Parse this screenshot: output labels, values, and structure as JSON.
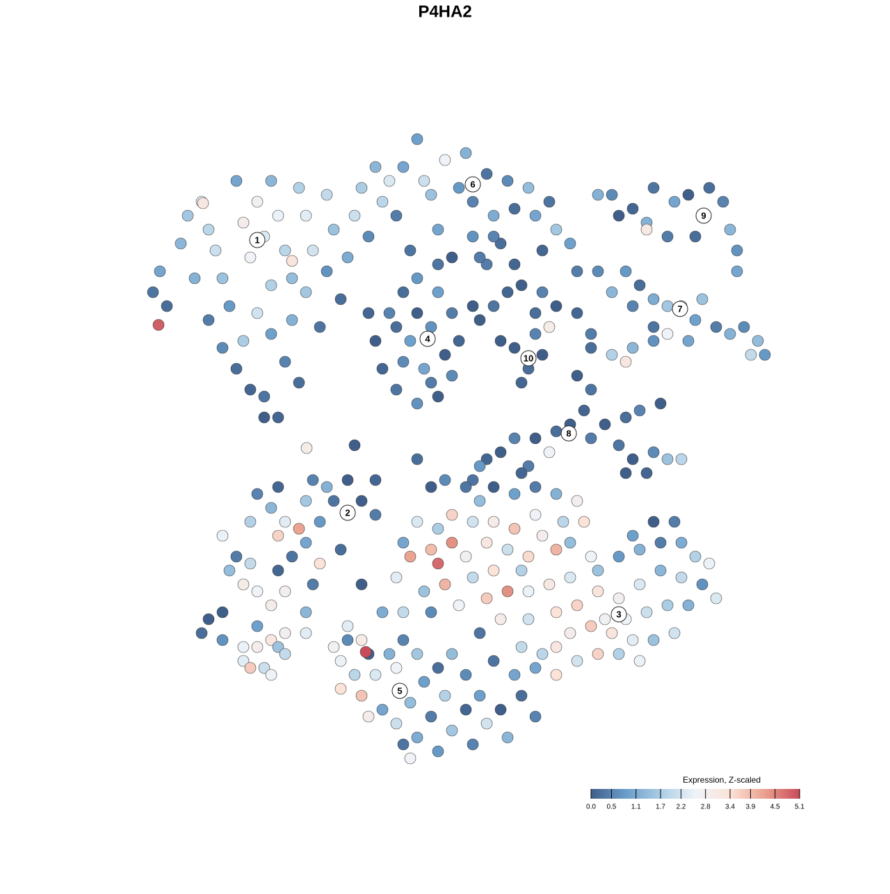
{
  "chart_data": {
    "type": "scatter",
    "title": "P4HA2",
    "xlim": [
      -47,
      47
    ],
    "ylim": [
      -46,
      46
    ],
    "x": [
      -44,
      -43,
      -40,
      -42,
      -39,
      -37,
      -36,
      -35,
      -34,
      -33,
      -38,
      -36,
      -34,
      -32,
      -30,
      -28,
      -31,
      -29,
      -27,
      -30,
      -31,
      -28,
      -26,
      -25,
      -24,
      -27,
      -25,
      -23,
      -26,
      -28,
      -24,
      -22,
      -21,
      -22,
      -23,
      -27,
      -32,
      -29,
      -19,
      -18,
      -19,
      -20,
      -17,
      -16,
      -15,
      -14,
      -12,
      -10,
      -13,
      -11,
      -9,
      -8,
      -6,
      -5,
      -4,
      -2,
      0,
      1,
      2,
      4,
      5,
      7,
      8,
      10,
      11,
      13,
      14,
      16,
      17,
      12,
      6,
      2,
      -3,
      -7,
      4,
      -1,
      -43.2,
      -36.8,
      -24,
      -12,
      -10,
      -8,
      -6,
      -3,
      -1,
      0,
      -1,
      -3,
      -6,
      -9,
      -11,
      -7,
      -4,
      -2,
      -5,
      -9,
      -6,
      -4,
      -8,
      -3,
      2,
      -13,
      3,
      5,
      7,
      9,
      12,
      14,
      11,
      6,
      8,
      3,
      5,
      8,
      10,
      12,
      11,
      9,
      13,
      22,
      25,
      27,
      28,
      31,
      33,
      35,
      36,
      38,
      39,
      40,
      40,
      27,
      23,
      30,
      34,
      20,
      20,
      22,
      24,
      26,
      25,
      28,
      30,
      32,
      34,
      35,
      37,
      39,
      41,
      43,
      44,
      42,
      28,
      17,
      19,
      22,
      25,
      28,
      24,
      30,
      33,
      17,
      19,
      18,
      16,
      19,
      21,
      24,
      26,
      29,
      23,
      25,
      28,
      30,
      32,
      27,
      24,
      14,
      11,
      8,
      6,
      10,
      13,
      4,
      2,
      19,
      -29,
      -27,
      -25,
      -23,
      -26,
      -30,
      -32,
      -30,
      -29,
      -26,
      -24,
      -22,
      -20,
      -18,
      -16,
      -19,
      -22,
      -25,
      -21,
      -20,
      -22,
      -17,
      -26,
      -21,
      -14,
      -12,
      -12,
      -34,
      -33,
      -27,
      -31,
      -4,
      -2,
      1,
      3,
      5,
      8,
      11,
      14,
      17,
      18,
      15,
      11,
      8,
      5,
      2,
      -1,
      -3,
      -6,
      -8,
      -4,
      -1,
      -3,
      -7,
      1,
      4,
      7,
      10,
      12,
      14,
      9,
      5,
      2,
      -2,
      -5,
      -9,
      -11,
      -8,
      -4,
      0,
      4,
      7,
      10,
      13,
      16,
      16,
      19,
      17,
      14,
      10,
      6,
      3,
      -14,
      -6,
      3,
      9,
      -16,
      -13,
      20,
      23,
      26,
      29,
      32,
      34,
      36,
      35,
      32,
      29,
      26,
      23,
      20,
      24,
      27,
      30,
      33,
      31,
      28,
      25,
      22,
      19,
      16,
      14,
      12,
      14,
      17,
      20,
      23,
      26,
      11,
      9,
      31,
      28,
      25,
      21,
      37,
      -16,
      -14,
      -17,
      -15,
      -17,
      -14,
      -12,
      -10,
      -8,
      -6,
      -9,
      -13,
      -11,
      -9,
      -7,
      -5,
      -3,
      -1,
      1,
      -2,
      -4,
      -6,
      -8,
      -3,
      -1,
      1,
      3,
      4,
      2,
      6,
      7,
      9,
      11,
      8,
      5,
      -13.4,
      -7,
      -18,
      -37,
      -36,
      -34,
      -31,
      -29,
      -31,
      -30,
      -28,
      -27,
      -26,
      -25,
      -25,
      -27,
      -29,
      -34,
      -22,
      -21.9,
      -15
    ],
    "y": [
      22,
      25,
      29,
      20,
      33,
      35,
      31,
      28,
      24,
      20,
      24,
      18,
      14,
      11,
      8,
      7,
      15,
      19,
      23,
      27,
      32,
      30,
      33,
      28,
      24,
      16,
      12,
      9,
      4,
      4,
      18,
      22,
      28,
      33,
      37,
      38,
      38,
      35,
      36,
      31,
      25,
      17,
      21,
      27,
      33,
      37,
      40,
      38,
      30,
      35,
      33,
      40,
      44,
      38,
      36,
      41,
      37,
      42,
      35,
      39,
      33,
      38,
      34,
      37,
      33,
      35,
      31,
      29,
      25,
      28,
      29,
      30,
      31,
      28,
      26,
      27,
      17.3,
      34.8,
      26.5,
      15,
      19,
      22,
      24,
      22,
      19,
      15,
      10,
      7,
      6,
      8,
      11,
      15,
      17,
      13,
      11,
      17,
      19,
      9,
      12,
      26,
      20,
      19,
      18,
      20,
      22,
      23,
      22,
      20,
      19,
      15,
      26,
      27,
      30,
      14,
      11,
      13,
      16,
      9,
      17,
      36,
      34,
      32,
      37,
      35,
      36,
      33,
      37,
      35,
      31,
      28,
      25,
      31,
      33,
      30,
      30,
      36,
      25,
      22,
      25,
      23,
      20,
      21,
      20,
      20,
      18,
      21,
      17,
      16,
      17,
      15,
      13,
      13,
      17,
      19,
      16,
      13,
      14,
      15,
      12,
      16,
      15,
      10,
      8,
      5,
      3,
      1,
      3,
      4,
      5,
      6,
      0,
      -2,
      -1,
      -2,
      -2,
      -4,
      -4,
      2,
      1,
      1,
      -1,
      -3,
      -1,
      -2,
      -5,
      14,
      -7,
      -9,
      -11,
      -12,
      -13,
      -11,
      -16,
      -17,
      -21,
      -18,
      -16,
      -14,
      -11,
      -8,
      -5,
      -6,
      -8,
      -21,
      -20,
      -17,
      -24,
      -15,
      -6,
      -5,
      -8,
      -10,
      -5,
      -13,
      -18,
      -23,
      -20,
      -6,
      -5,
      -6,
      -8,
      -6,
      -7,
      -6,
      -7,
      -8,
      -11,
      -11,
      -10,
      -12,
      -11,
      -11,
      -10,
      -12,
      -11,
      -14,
      -15,
      -14,
      -17,
      -16,
      -16,
      -14,
      -15,
      -16,
      -13,
      -15,
      -18,
      -18,
      -19,
      -20,
      -21,
      -19,
      -24,
      -24,
      -24,
      -23,
      -22,
      -21,
      -21,
      -20,
      -19,
      -14,
      -16,
      -23,
      -24,
      -25,
      -25,
      -27,
      -20,
      -2,
      -3,
      -4,
      -28,
      -30,
      -18,
      -16,
      -15,
      -14,
      -14,
      -16,
      -17,
      -20,
      -19,
      -18,
      -20,
      -22,
      -21,
      -25,
      -24,
      -23,
      -23,
      -27,
      -28,
      -28,
      -27,
      -26,
      -27,
      -29,
      -30,
      -33,
      -31,
      -30,
      -30,
      -31,
      -32,
      -29,
      -11,
      -11,
      -13,
      -25,
      -22,
      -26,
      -28,
      -31,
      -33,
      -35,
      -36,
      -33,
      -30,
      -28,
      -30,
      -32,
      -39,
      -38,
      -40,
      -37,
      -34,
      -32,
      -30,
      -33,
      -36,
      -39,
      -42,
      -43,
      -44,
      -41,
      -38,
      -36,
      -40,
      -43,
      -38,
      -42,
      -36,
      -39,
      -33,
      -31,
      -29.7,
      -45,
      -29,
      -27,
      -25,
      -28,
      -29,
      -29,
      -31,
      -32,
      -32,
      -28,
      -29,
      -27,
      -30,
      -33,
      -26,
      -24,
      -27,
      -0.4,
      0
    ],
    "values": [
      0.3,
      1.0,
      1.3,
      0.2,
      1.6,
      2.4,
      1.9,
      2.1,
      1.5,
      0.8,
      1.2,
      0.4,
      0.6,
      0.2,
      0.1,
      0.3,
      1.7,
      2.2,
      1.8,
      2.6,
      2.9,
      2.3,
      2.5,
      1.9,
      1.4,
      0.9,
      0.5,
      0.2,
      0.1,
      0.0,
      1.2,
      1.6,
      2.2,
      2.4,
      1.8,
      1.3,
      1.0,
      2.7,
      2.0,
      1.5,
      0.7,
      0.3,
      0.2,
      1.1,
      2.1,
      1.7,
      1.3,
      2.3,
      0.6,
      1.9,
      0.4,
      1.0,
      0.9,
      2.1,
      1.5,
      2.6,
      0.8,
      1.2,
      0.5,
      0.3,
      1.1,
      0.6,
      0.2,
      1.4,
      1.0,
      0.3,
      1.6,
      0.9,
      0.4,
      0.1,
      0.2,
      0.7,
      1.0,
      0.3,
      0.4,
      0.0,
      4.9,
      3.2,
      3.3,
      0.0,
      0.5,
      0.2,
      0.8,
      0.9,
      0.4,
      0.1,
      0.6,
      0.0,
      0.7,
      0.3,
      0.1,
      0.9,
      0.7,
      0.0,
      1.0,
      0.2,
      0.0,
      0.4,
      0.6,
      0.3,
      0.0,
      0.1,
      0.0,
      0.3,
      0.1,
      0.0,
      0.5,
      0.0,
      0.2,
      0.0,
      0.1,
      0.4,
      0.5,
      0.0,
      0.2,
      0.0,
      0.5,
      0.1,
      3.0,
      0.6,
      0.1,
      1.2,
      0.3,
      1.0,
      0.0,
      1.7,
      0.2,
      0.5,
      1.3,
      0.7,
      1.0,
      3.1,
      0.0,
      0.4,
      0.2,
      1.2,
      0.6,
      1.3,
      0.8,
      0.2,
      0.5,
      1.1,
      1.6,
      2.2,
      0.9,
      1.5,
      0.4,
      1.2,
      0.6,
      1.4,
      0.8,
      2.0,
      0.3,
      0.1,
      0.4,
      1.8,
      1.3,
      0.7,
      3.2,
      2.6,
      1.0,
      0.0,
      0.3,
      0.1,
      0.0,
      0.4,
      0.0,
      0.2,
      0.5,
      0.0,
      0.3,
      0.0,
      0.6,
      1.5,
      1.9,
      0.1,
      0.0,
      0.2,
      0.0,
      0.5,
      0.0,
      0.4,
      2.6,
      0.1,
      0.3,
      0.2,
      0.5,
      1.3,
      2.4,
      4.2,
      3.6,
      1.8,
      0.4,
      2.0,
      2.6,
      0.1,
      0.3,
      1.0,
      0.8,
      0.3,
      0.0,
      1.2,
      1.6,
      2.8,
      0.4,
      3.4,
      1.3,
      0.2,
      0.1,
      0.5,
      0.0,
      0.4,
      0.1,
      2.5,
      1.4,
      2.9,
      3.0,
      0.0,
      0.6,
      0.3,
      1.4,
      0.0,
      0.9,
      0.4,
      1.2,
      2.8,
      3.4,
      1.9,
      2.6,
      3.8,
      3.0,
      2.2,
      3.6,
      1.7,
      2.3,
      1.0,
      3.9,
      4.4,
      4.8,
      4.2,
      2.7,
      3.2,
      2.1,
      3.5,
      2.9,
      4.0,
      1.8,
      3.4,
      2.0,
      4.0,
      1.5,
      2.4,
      1.1,
      2.0,
      0.6,
      2.6,
      3.7,
      4.4,
      2.5,
      3.1,
      2.3,
      1.4,
      2.6,
      3.6,
      3.4,
      2.2,
      3.0,
      0.3,
      0.0,
      0.2,
      0.8,
      0.1,
      0.6,
      0.0,
      1.5,
      0.8,
      1.2,
      0.4,
      1.1,
      1.8,
      2.5,
      0.7,
      2.0,
      1.3,
      2.3,
      2.8,
      3.3,
      2.6,
      2.1,
      1.7,
      1.2,
      2.2,
      1.5,
      2.4,
      3.3,
      3.7,
      2.9,
      3.2,
      1.9,
      3.4,
      2.2,
      3.6,
      1.8,
      2.5,
      1.0,
      2.0,
      0.4,
      0.0,
      0.9,
      2.7,
      2.3,
      2.4,
      3.0,
      2.5,
      1.9,
      3.4,
      3.8,
      2.3,
      1.2,
      0.5,
      1.6,
      2.6,
      2.9,
      1.0,
      2.1,
      1.4,
      0.9,
      0.2,
      1.4,
      0.6,
      1.8,
      0.4,
      1.1,
      0.3,
      0.8,
      1.6,
      0.1,
      0.9,
      2.2,
      0.5,
      0.0,
      1.3,
      0.2,
      0.5,
      1.0,
      0.3,
      5.1,
      2.6,
      2.7,
      0.2,
      0.0,
      0.7,
      2.5,
      2.9,
      2.4,
      3.7,
      2.1,
      3.2,
      1.5,
      2.8,
      2.0,
      2.6,
      0.9,
      0.0,
      2.4,
      3.0,
      0.0
    ],
    "annotations": [
      {
        "text": "1",
        "x": -29,
        "y": 29.5
      },
      {
        "text": "2",
        "x": -16,
        "y": -9.7
      },
      {
        "text": "3",
        "x": 23,
        "y": -24.3
      },
      {
        "text": "4",
        "x": -4.5,
        "y": 15.3
      },
      {
        "text": "5",
        "x": -8.5,
        "y": -35.3
      },
      {
        "text": "6",
        "x": 2,
        "y": 37.5
      },
      {
        "text": "7",
        "x": 31.8,
        "y": 19.6
      },
      {
        "text": "8",
        "x": 15.8,
        "y": 1.7
      },
      {
        "text": "9",
        "x": 35.2,
        "y": 33
      },
      {
        "text": "10",
        "x": 10,
        "y": 12.5
      }
    ],
    "colorbar": {
      "title": "Expression, Z-scaled",
      "lim": [
        0,
        5.1
      ],
      "ticks": [
        {
          "value": 0,
          "label": "0.0"
        },
        0.5,
        1.1,
        1.7,
        2.2,
        2.8,
        3.4,
        3.9,
        4.5,
        5.1
      ],
      "colors": [
        "#3f5f8a",
        "#6a9dca",
        "#abcde4",
        "#eef3f8",
        "#fbe3d8",
        "#eaa08e",
        "#c94b5a"
      ]
    }
  }
}
